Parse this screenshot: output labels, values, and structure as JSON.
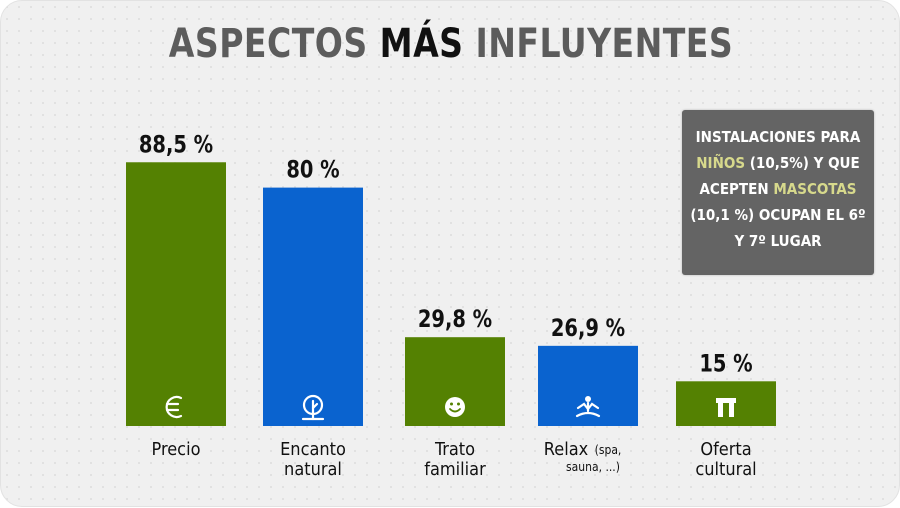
{
  "title": {
    "prefix": "ASPECTOS ",
    "highlight": "MÁS",
    "suffix": " INFLUYENTES"
  },
  "note": {
    "line1": "INSTALACIONES PARA",
    "line2_highlight": "NIÑOS",
    "line2_rest": " (10,5%) Y QUE",
    "line3_prefix": "ACEPTEN ",
    "line3_highlight": "MASCOTAS",
    "line4": "(10,1 %) OCUPAN EL 6º",
    "line5": "Y 7º LUGAR"
  },
  "colors": {
    "green": "#548102",
    "blue": "#0a63cf",
    "title_grey": "#5c5c5c",
    "note_bg": "#646464",
    "note_highlight": "#d7d98c"
  },
  "chart_data": {
    "type": "bar",
    "title": "ASPECTOS MÁS INFLUYENTES",
    "xlabel": "",
    "ylabel": "",
    "ylim": [
      0,
      100
    ],
    "grid": false,
    "categories": [
      "Precio",
      "Encanto natural",
      "Trato familiar",
      "Relax (spa, sauna, ...)",
      "Oferta cultural"
    ],
    "values": [
      88.5,
      80,
      29.8,
      26.9,
      15
    ],
    "bars": [
      {
        "label_lines": [
          "Precio"
        ],
        "label_small": "",
        "value_label": "88,5 %",
        "value": 88.5,
        "color": "#548102",
        "icon": "euro-icon"
      },
      {
        "label_lines": [
          "Encanto",
          "natural"
        ],
        "label_small": "",
        "value_label": "80 %",
        "value": 80,
        "color": "#0a63cf",
        "icon": "leaf-icon"
      },
      {
        "label_lines": [
          "Trato",
          "familiar"
        ],
        "label_small": "",
        "value_label": "29,8 %",
        "value": 29.8,
        "color": "#548102",
        "icon": "smiley-icon"
      },
      {
        "label_lines": [
          "Relax"
        ],
        "label_small": "(spa,",
        "label_small2": "sauna, ...)",
        "value_label": "26,9 %",
        "value": 26.9,
        "color": "#0a63cf",
        "icon": "meditation-icon"
      },
      {
        "label_lines": [
          "Oferta",
          "cultural"
        ],
        "label_small": "",
        "value_label": "15 %",
        "value": 15,
        "color": "#548102",
        "icon": "monument-icon"
      }
    ]
  }
}
